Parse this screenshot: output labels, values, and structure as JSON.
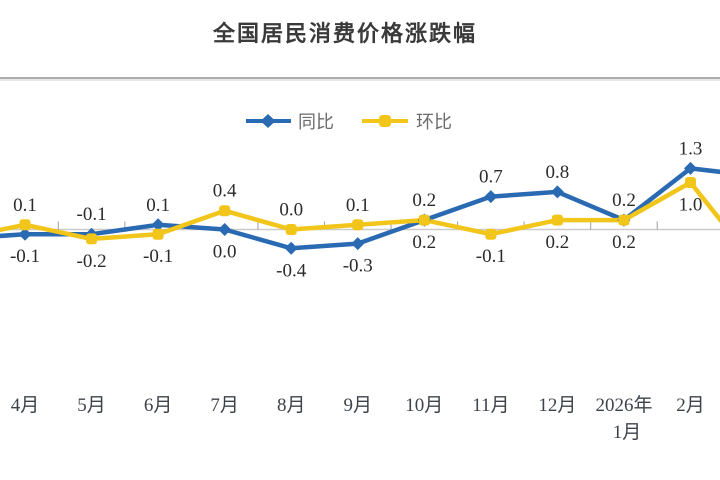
{
  "page": {
    "background": "#ffffff"
  },
  "chart_data": {
    "type": "line",
    "title": "全国居民消费价格涨跌幅",
    "categories": [
      "4月",
      "5月",
      "6月",
      "7月",
      "8月",
      "9月",
      "10月",
      "11月",
      "12月",
      "2026年\n1月",
      "2月"
    ],
    "series": [
      {
        "name": "同比",
        "color": "#2a6ab2",
        "marker": "diamond",
        "values": [
          -0.1,
          -0.1,
          0.1,
          0.0,
          -0.4,
          -0.3,
          0.2,
          0.7,
          0.8,
          0.2,
          1.3
        ]
      },
      {
        "name": "环比",
        "color": "#f2c51a",
        "marker": "round-square",
        "values": [
          0.1,
          -0.2,
          -0.1,
          0.4,
          0.0,
          0.1,
          0.2,
          -0.1,
          0.2,
          0.2,
          1.0
        ]
      }
    ],
    "value_labels": {
      "show": true,
      "decimals": 1
    },
    "legend": {
      "position": "top-center",
      "items": [
        "同比",
        "环比"
      ]
    },
    "axes": {
      "x_type": "category",
      "y_axis_visible": false,
      "zero_line": true
    }
  },
  "colors": {
    "series_yoy": "#2a6ab2",
    "series_mom": "#f2c51a",
    "axis_line": "#cbcbcb",
    "tick": "#9e9e9e",
    "title_text": "#3a3a3a",
    "value_label_text": "#2b2b2b",
    "month_label_text": "#3d434a",
    "legend_text": "#6b6b6b",
    "divider": "#adadad"
  }
}
